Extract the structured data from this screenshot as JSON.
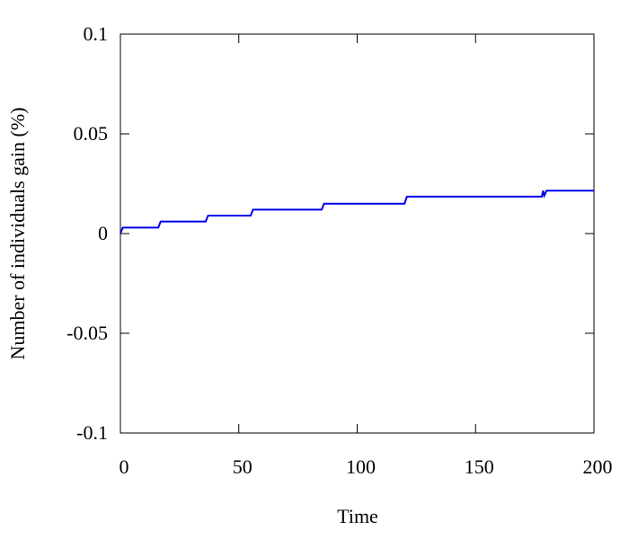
{
  "chart_data": {
    "type": "line",
    "x_label": "Time",
    "y_label": "Number of individuals gain (%)",
    "x": [
      0,
      1,
      16,
      17,
      36,
      37,
      55,
      56,
      85,
      86,
      120,
      121,
      178,
      178.5,
      179,
      180,
      200
    ],
    "values": [
      0,
      0.003,
      0.003,
      0.006,
      0.006,
      0.009,
      0.009,
      0.012,
      0.012,
      0.015,
      0.015,
      0.0185,
      0.0185,
      0.0215,
      0.019,
      0.0215,
      0.0215
    ],
    "color": "#0000ee",
    "xlim": [
      0,
      200
    ],
    "xticks": [
      0,
      50,
      100,
      150,
      200
    ],
    "ylim": [
      -0.1,
      0.1
    ],
    "yticks": [
      -0.1,
      -0.05,
      0,
      0.05,
      0.1
    ]
  }
}
